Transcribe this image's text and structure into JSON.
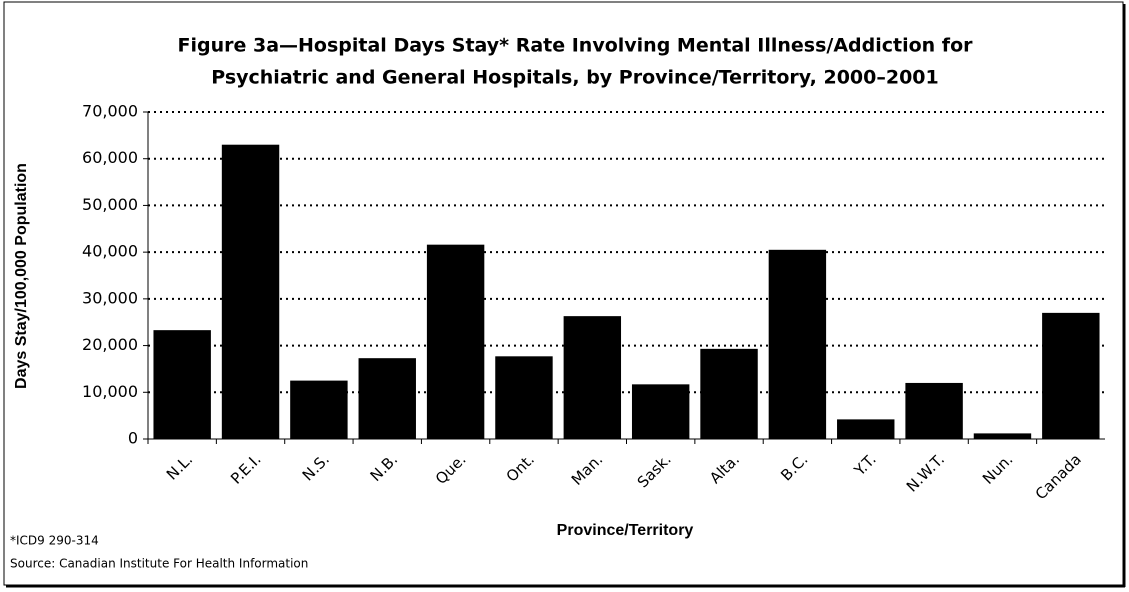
{
  "chart_data": {
    "type": "bar",
    "title": [
      "Figure 3a—Hospital Days Stay* Rate Involving Mental Illness/Addiction for",
      "Psychiatric and General Hospitals, by Province/Territory, 2000–2001"
    ],
    "x_label": "Province/Territory",
    "y_label": "Days Stay/100,000 Population",
    "categories": [
      "N.L.",
      "P.E.I.",
      "N.S.",
      "N.B.",
      "Que.",
      "Ont.",
      "Man.",
      "Sask.",
      "Alta.",
      "B.C.",
      "Y.T.",
      "N.W.T.",
      "Nun.",
      "Canada"
    ],
    "values": [
      23300,
      63000,
      12500,
      17300,
      41600,
      17700,
      26300,
      11700,
      19300,
      40500,
      4200,
      12000,
      1200,
      27000
    ],
    "color": "#000000",
    "ylim": [
      0,
      70000
    ],
    "yticks": [
      0,
      {
        "value": 10000,
        "label": "10,000"
      },
      {
        "value": 20000,
        "label": "20,000"
      },
      {
        "value": 30000,
        "label": "30,000"
      },
      {
        "value": 40000,
        "label": "40,000"
      },
      {
        "value": 50000,
        "label": "50,000"
      },
      {
        "value": 60000,
        "label": "60,000"
      },
      {
        "value": 70000,
        "label": "70,000"
      }
    ],
    "grid": true,
    "notes": [
      "*ICD9 290-314",
      "Source: Canadian Institute For Health Information"
    ]
  }
}
